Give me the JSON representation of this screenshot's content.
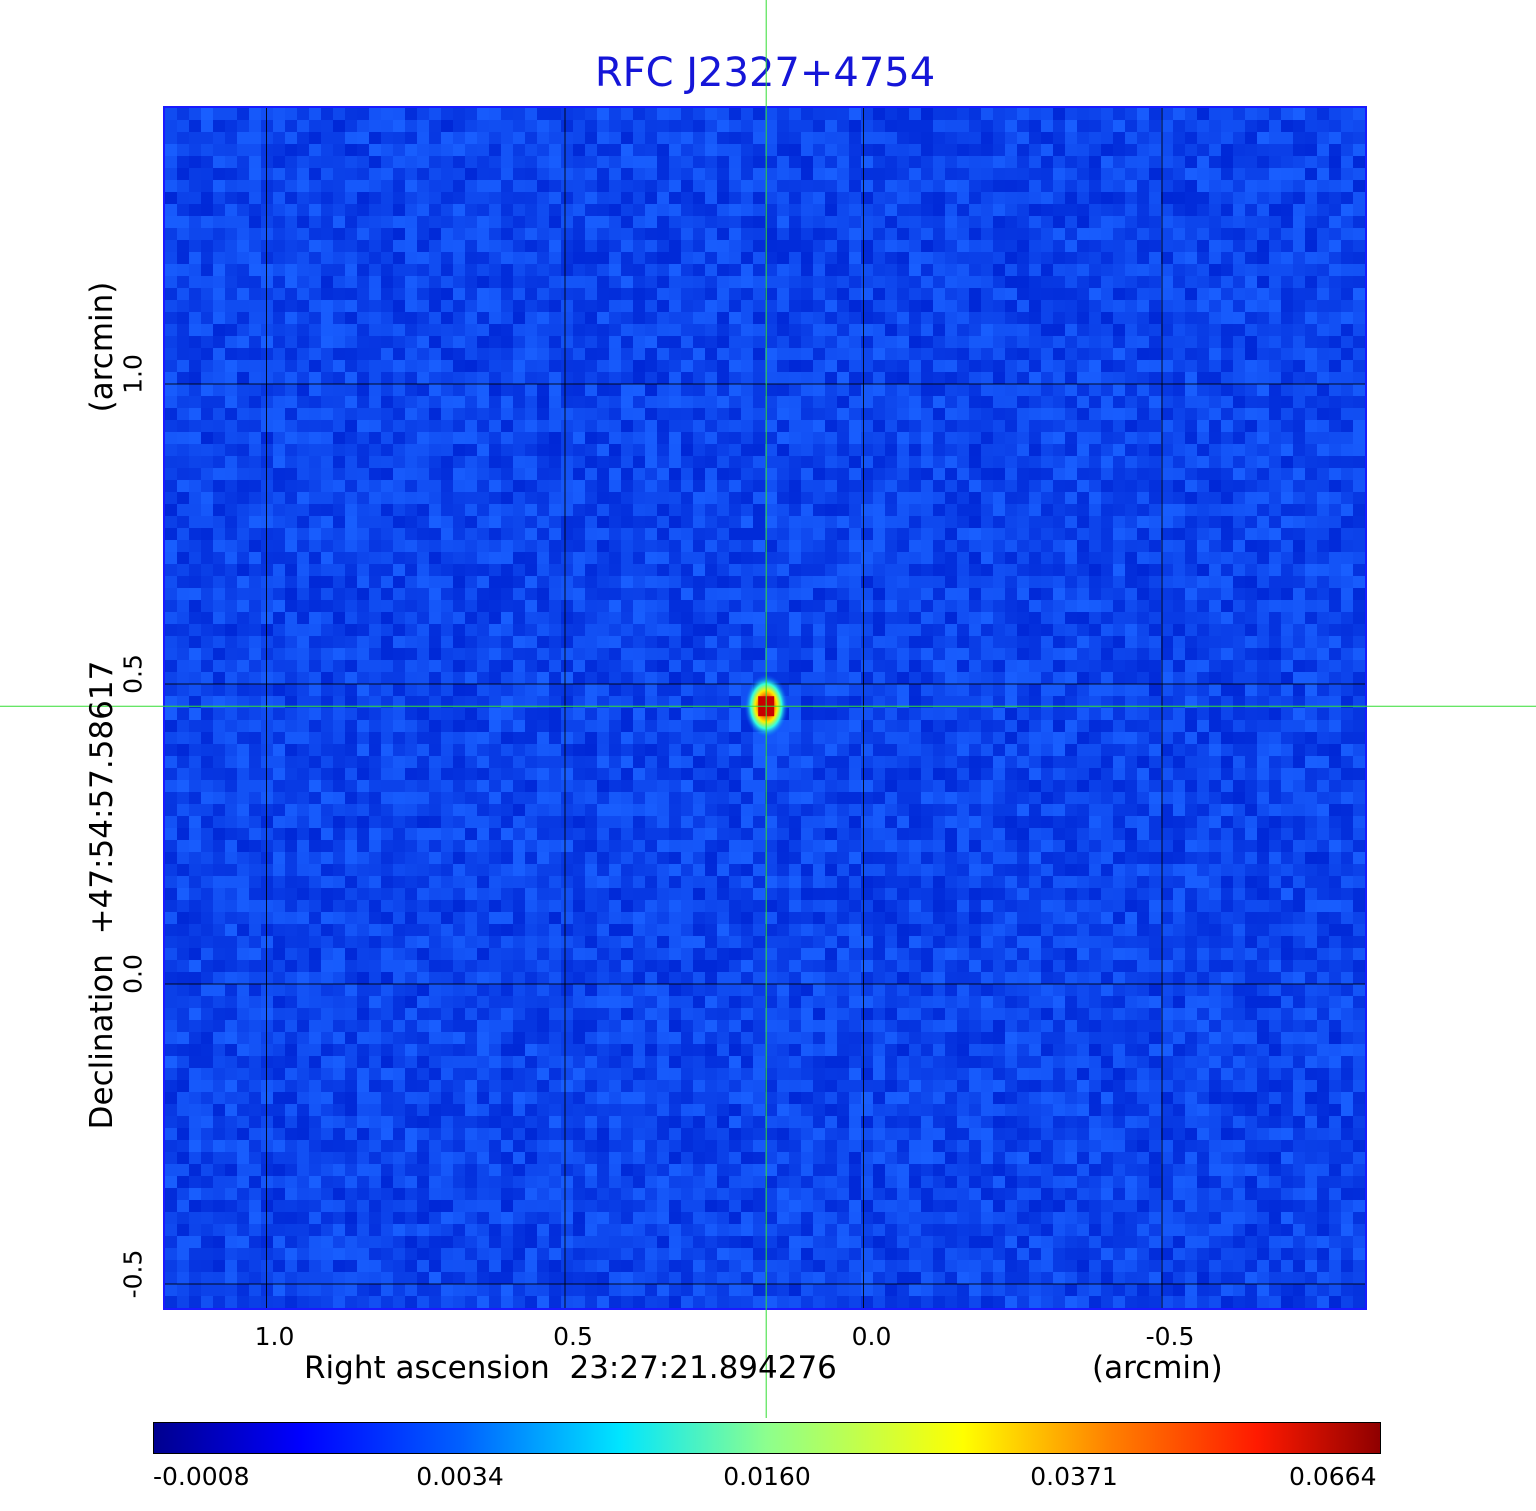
{
  "chart_data": {
    "type": "heatmap",
    "title": "RFC J2327+4754",
    "xlabel": "Right ascension  23:27:21.894276",
    "x_unit": "(arcmin)",
    "ylabel": "Declination  +47:54:57.58617",
    "y_unit": "(arcmin)",
    "x_ticks": [
      1.0,
      0.5,
      0.0,
      -0.5
    ],
    "x_tick_labels": [
      "1.0",
      "0.5",
      "0.0",
      "-0.5"
    ],
    "y_ticks": [
      1.0,
      0.5,
      0.0,
      -0.5
    ],
    "y_tick_labels": [
      "1.0",
      "0.5",
      "0.0",
      "-0.5"
    ],
    "xlim": [
      1.17,
      -0.84
    ],
    "ylim": [
      -0.54,
      1.46
    ],
    "grid": true,
    "crosshair": {
      "x": 0.163,
      "y": 0.463,
      "color": "#33dd33"
    },
    "source": {
      "x": 0.163,
      "y": 0.463,
      "peak": 0.0664
    },
    "colormap": "jet",
    "colorbar_ticks": [
      "-0.0008",
      "0.0034",
      "0.0160",
      "0.0371",
      "0.0664"
    ],
    "colorbar_range": [
      -0.0008,
      0.0664
    ]
  }
}
